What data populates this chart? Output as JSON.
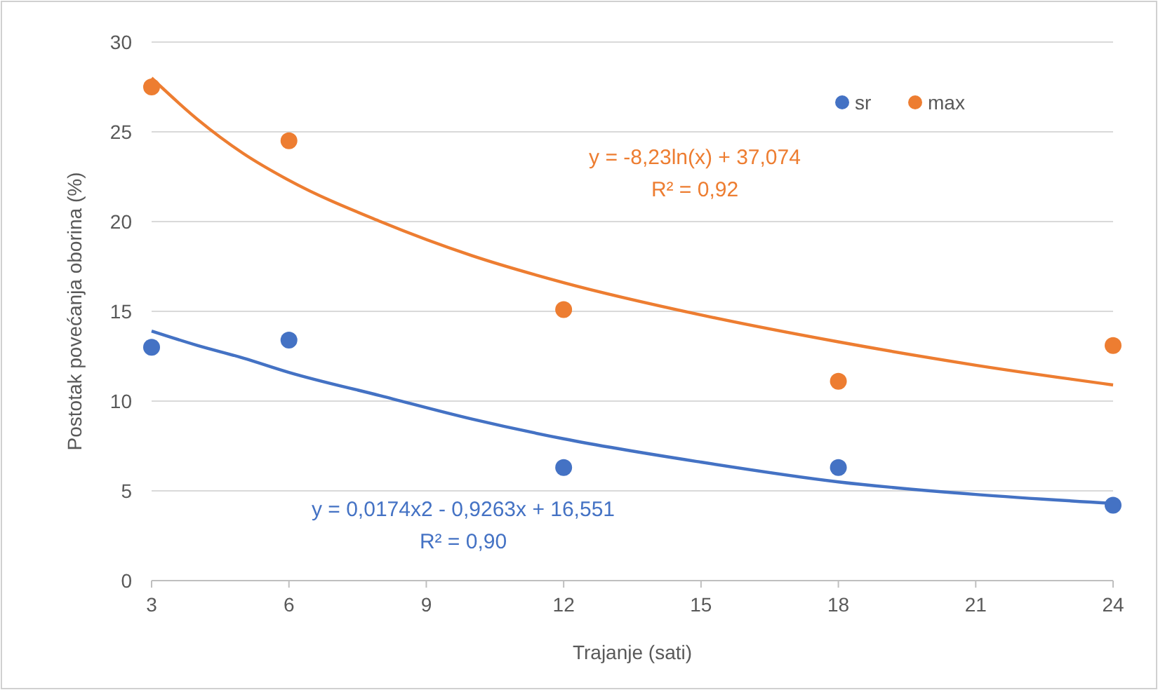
{
  "chart_data": {
    "type": "scatter",
    "xlabel": "Trajanje (sati)",
    "ylabel": "Postotak povećanja oborina (%)",
    "x": [
      3,
      6,
      12,
      18,
      24
    ],
    "series": [
      {
        "name": "sr",
        "color": "#4472c4",
        "marker": "circle",
        "values": [
          13.0,
          13.4,
          6.3,
          6.3,
          4.2
        ]
      },
      {
        "name": "max",
        "color": "#ed7d31",
        "marker": "circle",
        "values": [
          27.5,
          24.5,
          15.1,
          11.1,
          13.1
        ]
      },
      {
        "type": "line",
        "color": "#4472c4",
        "marker": "none",
        "x": [
          3,
          4,
          5,
          6,
          8,
          10,
          12,
          15,
          18,
          21,
          24
        ],
        "values": [
          13.9,
          13.1,
          12.4,
          11.6,
          10.3,
          9.0,
          7.9,
          6.6,
          5.5,
          4.8,
          4.3
        ]
      },
      {
        "type": "line",
        "color": "#ed7d31",
        "marker": "none",
        "x": [
          3,
          4,
          5,
          6,
          8,
          10,
          12,
          15,
          18,
          21,
          24
        ],
        "values": [
          28.0,
          25.7,
          23.8,
          22.3,
          20.0,
          18.1,
          16.6,
          14.8,
          13.3,
          12.0,
          10.9
        ]
      }
    ],
    "annotations": [
      "y = -8,23ln(x) + 37,074",
      "R² = 0,92",
      "y = 0,0174x2 - 0,9263x + 16,551",
      "R² = 0,90"
    ],
    "xlim": [
      3,
      24
    ],
    "xticks": [
      3,
      6,
      9,
      12,
      15,
      18,
      21,
      24
    ],
    "ylim": [
      0,
      30
    ],
    "yticks": [
      0,
      5,
      10,
      15,
      20,
      25,
      30
    ],
    "grid": "y",
    "legend": "top right",
    "line_style": "solid"
  }
}
